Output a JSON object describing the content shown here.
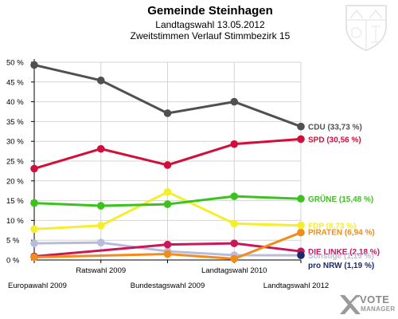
{
  "header": {
    "title": "Gemeinde Steinhagen",
    "subtitle1": "Landtagswahl 13.05.2012",
    "subtitle2": "Zweitstimmen Verlauf Stimmbezirk 15"
  },
  "logo": {
    "line1": "VOTE",
    "line2": "MANAGER"
  },
  "chart_data": {
    "type": "line",
    "categories": [
      "Europawahl 2009",
      "Ratswahl 2009",
      "Bundestagswahl 2009",
      "Landtagswahl 2010",
      "Landtagswahl 2012"
    ],
    "ylim": [
      0,
      50
    ],
    "yticks": [
      "0 %",
      "5 %",
      "10 %",
      "15 %",
      "20 %",
      "25 %",
      "30 %",
      "35 %",
      "40 %",
      "45 %",
      "50 %"
    ],
    "grid": true,
    "series": [
      {
        "name": "CDU",
        "label": "CDU (33,73 %)",
        "color": "#505050",
        "values": [
          49.3,
          45.4,
          37.1,
          40.0,
          33.73
        ]
      },
      {
        "name": "SPD",
        "label": "SPD (30,56 %)",
        "color": "#d0103a",
        "values": [
          23.1,
          28.1,
          24.0,
          29.3,
          30.56
        ]
      },
      {
        "name": "GRÜNE",
        "label": "GRÜNE (15,48 %)",
        "color": "#3cc21e",
        "values": [
          14.4,
          13.7,
          14.1,
          16.1,
          15.48
        ]
      },
      {
        "name": "FDP",
        "label": "FDP (8,73 %)",
        "color": "#f5ee2c",
        "values": [
          7.8,
          8.7,
          17.2,
          9.2,
          8.73
        ]
      },
      {
        "name": "PIRATEN",
        "label": "PIRATEN (6,94 %)",
        "color": "#f08c1c",
        "values": [
          0.7,
          null,
          1.5,
          0.3,
          6.94
        ]
      },
      {
        "name": "DIE LINKE",
        "label": "DIE LINKE (2,18 %)",
        "color": "#c8185a",
        "values": [
          0.9,
          null,
          3.9,
          4.2,
          2.18
        ]
      },
      {
        "name": "Sonstige",
        "label": "Sonstige (1,19 %)",
        "color": "#b8bcdc",
        "values": [
          4.2,
          4.4,
          2.2,
          1.2,
          1.19
        ]
      },
      {
        "name": "pro NRW",
        "label": "pro NRW (1,19 %)",
        "color": "#1a2a6c",
        "values": [
          null,
          null,
          null,
          null,
          1.19
        ]
      }
    ]
  }
}
